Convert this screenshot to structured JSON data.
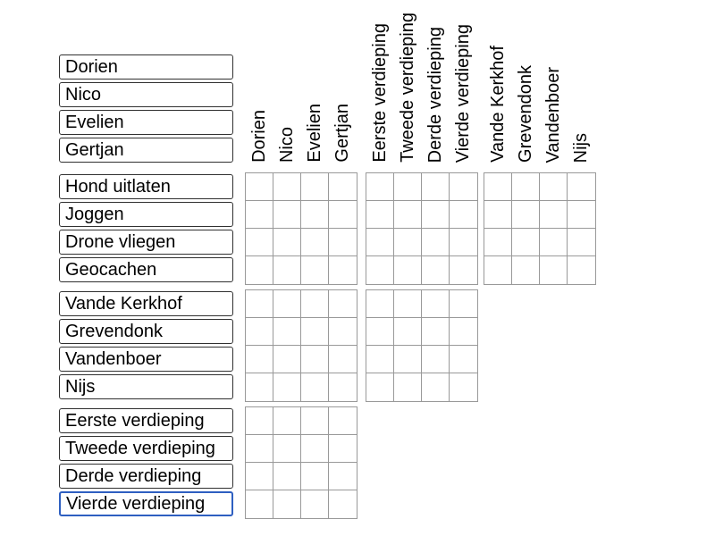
{
  "puzzle": {
    "row_groups": [
      {
        "id": "names",
        "items": [
          "Dorien",
          "Nico",
          "Evelien",
          "Gertjan"
        ]
      },
      {
        "id": "activities",
        "items": [
          "Hond uitlaten",
          "Joggen",
          "Drone vliegen",
          "Geocachen"
        ]
      },
      {
        "id": "surnames",
        "items": [
          "Vande Kerkhof",
          "Grevendonk",
          "Vandenboer",
          "Nijs"
        ]
      },
      {
        "id": "floors",
        "items": [
          "Eerste verdieping",
          "Tweede verdieping",
          "Derde verdieping",
          "Vierde verdieping"
        ]
      }
    ],
    "column_groups": [
      {
        "id": "names",
        "labels": [
          "Dorien",
          "Nico",
          "Evelien",
          "Gertjan"
        ]
      },
      {
        "id": "floors",
        "labels": [
          "Eerste verdieping",
          "Tweede verdieping",
          "Derde verdieping",
          "Vierde verdieping"
        ]
      },
      {
        "id": "surnames",
        "labels": [
          "Vande Kerkhof",
          "Grevendonk",
          "Vandenboer",
          "Nijs"
        ]
      }
    ],
    "grid_blocks": [
      "activities-x-names",
      "activities-x-floors",
      "activities-x-surnames",
      "surnames-x-names",
      "surnames-x-floors",
      "floors-x-names"
    ],
    "cells_per_block": 16,
    "focused_item": "Vierde verdieping",
    "all_cells_empty": true
  },
  "colors": {
    "background": "#ffffff",
    "box_border": "#303030",
    "focus_border": "#2e5fc1",
    "grid_line": "#999999",
    "text": "#000000"
  }
}
